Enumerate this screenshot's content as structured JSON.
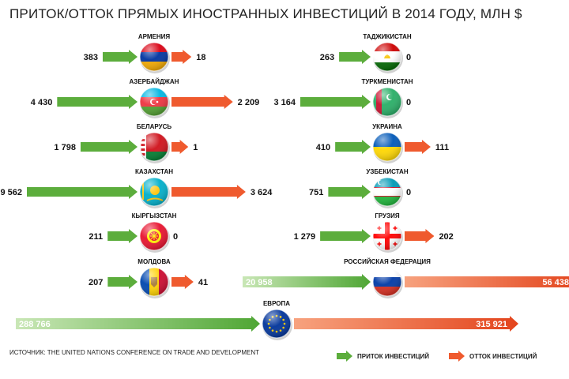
{
  "title": "ПРИТОК/ОТТОК ПРЯМЫХ ИНОСТРАННЫХ ИНВЕСТИЦИЙ В 2014 ГОДУ,  МЛН $",
  "source": "ИСТОЧНИК: THE UNITED NATIONS CONFERENCE ON TRADE AND DEVELOPMENT",
  "legend": {
    "inflow": "ПРИТОК ИНВЕСТИЦИЙ",
    "outflow": "ОТТОК ИНВЕСТИЦИЙ"
  },
  "colors": {
    "inflow": "#5cad3c",
    "outflow": "#ef5a2e"
  },
  "chart_data": {
    "type": "bar",
    "unit": "млн $",
    "countries": [
      {
        "name": "АРМЕНИЯ",
        "inflow": 383,
        "outflow": 18,
        "inflow_label": "383",
        "outflow_label": "18",
        "flag": "armenia-flag-icon"
      },
      {
        "name": "АЗЕРБАЙДЖАН",
        "inflow": 4430,
        "outflow": 2209,
        "inflow_label": "4 430",
        "outflow_label": "2 209",
        "flag": "azerbaijan-flag-icon"
      },
      {
        "name": "БЕЛАРУСЬ",
        "inflow": 1798,
        "outflow": 1,
        "inflow_label": "1 798",
        "outflow_label": "1",
        "flag": "belarus-flag-icon"
      },
      {
        "name": "КАЗАХСТАН",
        "inflow": 9562,
        "outflow": 3624,
        "inflow_label": "9 562",
        "outflow_label": "3 624",
        "flag": "kazakhstan-flag-icon"
      },
      {
        "name": "КЫРГЫЗСТАН",
        "inflow": 211,
        "outflow": 0,
        "inflow_label": "211",
        "outflow_label": "0",
        "flag": "kyrgyzstan-flag-icon"
      },
      {
        "name": "МОЛДОВА",
        "inflow": 207,
        "outflow": 41,
        "inflow_label": "207",
        "outflow_label": "41",
        "flag": "moldova-flag-icon"
      },
      {
        "name": "ТАДЖИКИСТАН",
        "inflow": 263,
        "outflow": 0,
        "inflow_label": "263",
        "outflow_label": "0",
        "flag": "tajikistan-flag-icon"
      },
      {
        "name": "ТУРКМЕНИСТАН",
        "inflow": 3164,
        "outflow": 0,
        "inflow_label": "3 164",
        "outflow_label": "0",
        "flag": "turkmenistan-flag-icon"
      },
      {
        "name": "УКРАИНА",
        "inflow": 410,
        "outflow": 111,
        "inflow_label": "410",
        "outflow_label": "111",
        "flag": "ukraine-flag-icon"
      },
      {
        "name": "УЗБЕКИСТАН",
        "inflow": 751,
        "outflow": 0,
        "inflow_label": "751",
        "outflow_label": "0",
        "flag": "uzbekistan-flag-icon"
      },
      {
        "name": "ГРУЗИЯ",
        "inflow": 1279,
        "outflow": 202,
        "inflow_label": "1 279",
        "outflow_label": "202",
        "flag": "georgia-flag-icon"
      },
      {
        "name": "РОССИЙСКАЯ ФЕДЕРАЦИЯ",
        "inflow": 20958,
        "outflow": 56438,
        "inflow_label": "20 958",
        "outflow_label": "56 438",
        "flag": "russia-flag-icon"
      },
      {
        "name": "ЕВРОПА",
        "inflow": 288766,
        "outflow": 315921,
        "inflow_label": "288 766",
        "outflow_label": "315 921",
        "flag": "eu-flag-icon"
      }
    ]
  }
}
